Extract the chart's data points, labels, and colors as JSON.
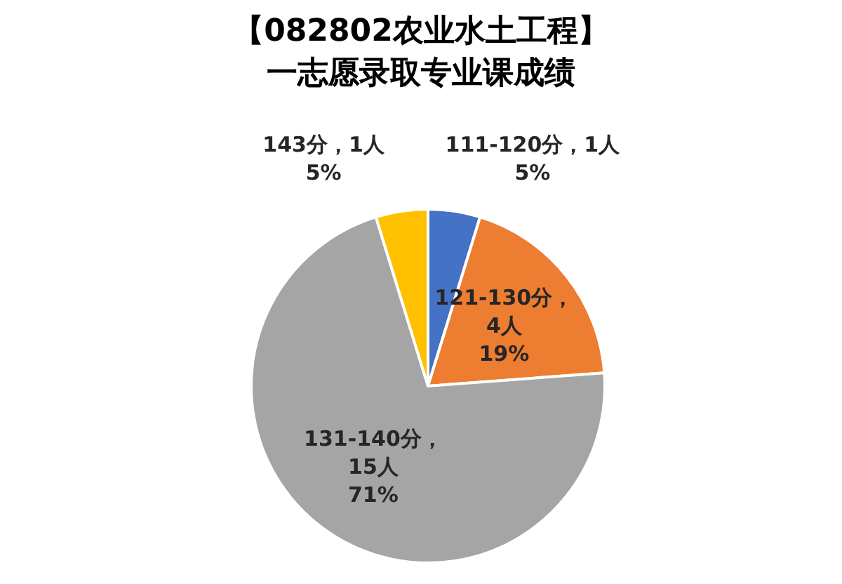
{
  "chart_data": {
    "type": "pie",
    "title": "【082802农业水土工程】",
    "subtitle": "一志愿录取专业课成绩",
    "categories": [
      "111-120分",
      "121-130分",
      "131-140分",
      "143分"
    ],
    "values": [
      1,
      4,
      15,
      1
    ],
    "colors": [
      "#4472c4",
      "#ed7d31",
      "#a5a5a5",
      "#ffc000"
    ],
    "value_labels": [
      "，1人\n5%",
      "，\n4人\n19%",
      "，\n15人\n71%",
      "，1人\n5%"
    ]
  }
}
